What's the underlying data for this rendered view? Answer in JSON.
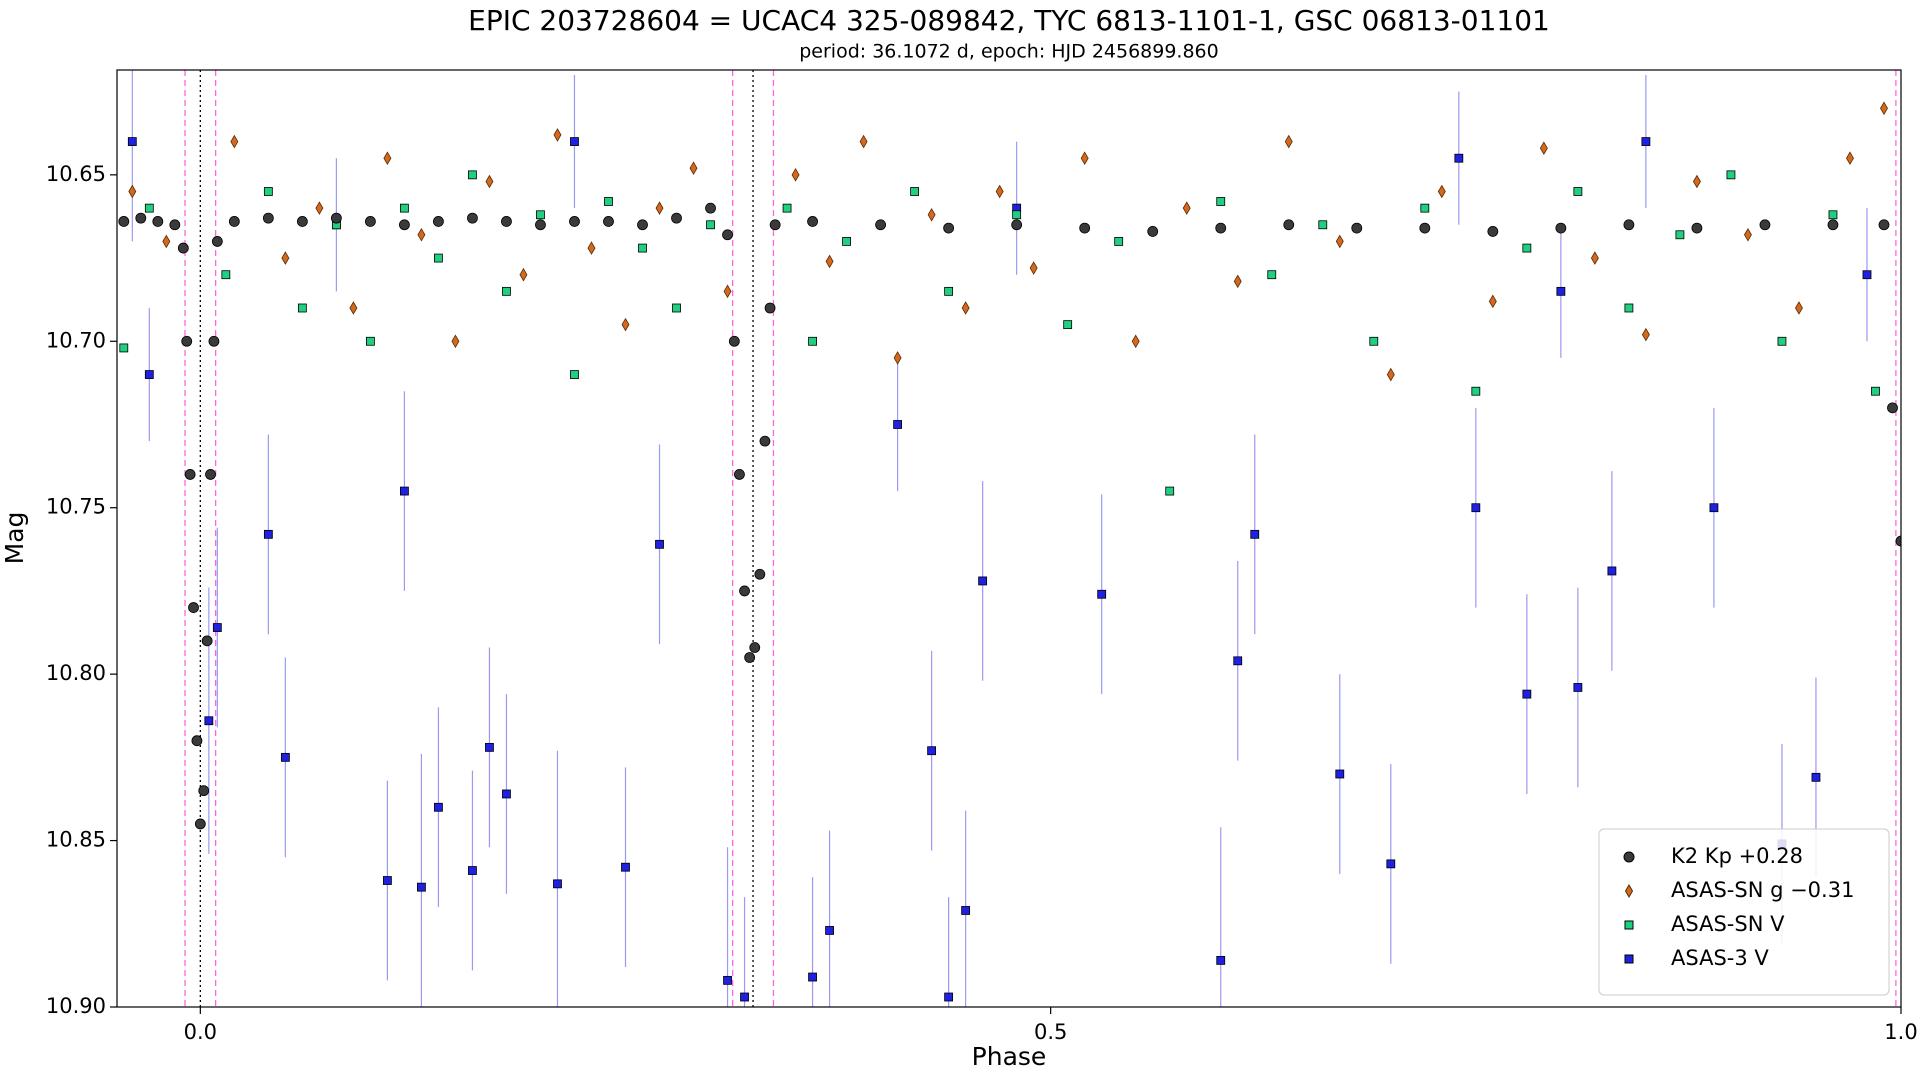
{
  "chart_data": {
    "type": "scatter",
    "title": "EPIC 203728604 = UCAC4 325-089842, TYC 6813-1101-1, GSC 06813-01101",
    "subtitle": "period: 36.1072 d, epoch: HJD 2456899.860",
    "x_label": "Phase",
    "y_label": "Mag",
    "xlim": [
      -0.049,
      1.0
    ],
    "ylim": [
      10.6185,
      10.9
    ],
    "invert_y": true,
    "xticks": [
      {
        "value": 0,
        "label": "0.0"
      },
      0.5,
      {
        "value": 1,
        "label": "1.0"
      }
    ],
    "yticks": [
      10.65,
      {
        "value": 10.7,
        "label": "10.70"
      },
      10.75,
      {
        "value": 10.8,
        "label": "10.80"
      },
      10.85,
      {
        "value": 10.9,
        "label": "10.90"
      }
    ],
    "legend": "lower right",
    "vlines": [
      {
        "x": -0.009,
        "color": "#ff66dd",
        "style": "dashed"
      },
      {
        "x": 0.009,
        "color": "#ff66dd",
        "style": "dashed"
      },
      {
        "x": 0.313,
        "color": "#ff66dd",
        "style": "dashed"
      },
      {
        "x": 0.337,
        "color": "#ff66dd",
        "style": "dashed"
      },
      {
        "x": 0.997,
        "color": "#ff66dd",
        "style": "dashed"
      },
      {
        "x": 0,
        "color": "#000000",
        "style": "dotted"
      },
      {
        "x": 0.325,
        "color": "#000000",
        "style": "dotted"
      }
    ],
    "series": [
      {
        "name": "ASAS-3 V",
        "color": "#2020e0",
        "marker": "square",
        "x": [
          -0.04,
          -0.03,
          0.005,
          0.01,
          0.04,
          0.05,
          0.08,
          0.11,
          0.12,
          0.13,
          0.14,
          0.16,
          0.17,
          0.18,
          0.21,
          0.22,
          0.25,
          0.27,
          0.31,
          0.32,
          0.36,
          0.37,
          0.41,
          0.43,
          0.44,
          0.45,
          0.46,
          0.48,
          0.53,
          0.6,
          0.61,
          0.62,
          0.67,
          0.7,
          0.74,
          0.75,
          0.78,
          0.8,
          0.81,
          0.83,
          0.85,
          0.89,
          0.93,
          0.95,
          0.98
        ],
        "values": [
          10.64,
          10.71,
          10.814,
          10.786,
          10.758,
          10.825,
          10.665,
          10.862,
          10.745,
          10.864,
          10.84,
          10.859,
          10.822,
          10.836,
          10.863,
          10.64,
          10.858,
          10.761,
          10.892,
          10.897,
          10.891,
          10.877,
          10.725,
          10.823,
          10.897,
          10.871,
          10.772,
          10.66,
          10.776,
          10.886,
          10.796,
          10.758,
          10.83,
          10.857,
          10.645,
          10.75,
          10.806,
          10.685,
          10.804,
          10.769,
          10.64,
          10.75,
          10.851,
          10.831,
          10.68
        ],
        "errors": [
          0.03,
          0.02,
          0.04,
          0.03,
          0.03,
          0.03,
          0.02,
          0.03,
          0.03,
          0.04,
          0.03,
          0.03,
          0.03,
          0.03,
          0.04,
          0.02,
          0.03,
          0.03,
          0.04,
          0.03,
          0.03,
          0.03,
          0.02,
          0.03,
          0.03,
          0.03,
          0.03,
          0.02,
          0.03,
          0.04,
          0.03,
          0.03,
          0.03,
          0.03,
          0.02,
          0.03,
          0.03,
          0.02,
          0.03,
          0.03,
          0.02,
          0.03,
          0.03,
          0.03,
          0.02
        ]
      },
      {
        "name": "ASAS-SN g −0.31",
        "color": "#d2691e",
        "marker": "diamond",
        "x": [
          -0.04,
          -0.02,
          0.02,
          0.05,
          0.07,
          0.09,
          0.11,
          0.13,
          0.15,
          0.17,
          0.19,
          0.21,
          0.23,
          0.25,
          0.27,
          0.29,
          0.31,
          0.35,
          0.37,
          0.39,
          0.41,
          0.43,
          0.45,
          0.47,
          0.49,
          0.52,
          0.55,
          0.58,
          0.61,
          0.64,
          0.67,
          0.7,
          0.73,
          0.76,
          0.79,
          0.82,
          0.85,
          0.88,
          0.91,
          0.94,
          0.97,
          0.99
        ],
        "values": [
          10.655,
          10.67,
          10.64,
          10.675,
          10.66,
          10.69,
          10.645,
          10.668,
          10.7,
          10.652,
          10.68,
          10.638,
          10.672,
          10.695,
          10.66,
          10.648,
          10.685,
          10.65,
          10.676,
          10.64,
          10.705,
          10.662,
          10.69,
          10.655,
          10.678,
          10.645,
          10.7,
          10.66,
          10.682,
          10.64,
          10.67,
          10.71,
          10.655,
          10.688,
          10.642,
          10.675,
          10.698,
          10.652,
          10.668,
          10.69,
          10.645,
          10.63
        ]
      },
      {
        "name": "ASAS-SN V",
        "color": "#20d080",
        "marker": "square",
        "x": [
          -0.045,
          -0.03,
          0.015,
          0.04,
          0.06,
          0.08,
          0.1,
          0.12,
          0.14,
          0.16,
          0.18,
          0.2,
          0.22,
          0.24,
          0.26,
          0.28,
          0.3,
          0.345,
          0.36,
          0.38,
          0.42,
          0.44,
          0.48,
          0.51,
          0.54,
          0.57,
          0.6,
          0.63,
          0.66,
          0.69,
          0.72,
          0.75,
          0.78,
          0.81,
          0.84,
          0.87,
          0.9,
          0.93,
          0.96,
          0.985
        ],
        "values": [
          10.702,
          10.66,
          10.68,
          10.655,
          10.69,
          10.665,
          10.7,
          10.66,
          10.675,
          10.65,
          10.685,
          10.662,
          10.71,
          10.658,
          10.672,
          10.69,
          10.665,
          10.66,
          10.7,
          10.67,
          10.655,
          10.685,
          10.662,
          10.695,
          10.67,
          10.745,
          10.658,
          10.68,
          10.665,
          10.7,
          10.66,
          10.715,
          10.672,
          10.655,
          10.69,
          10.668,
          10.65,
          10.7,
          10.662,
          10.715
        ]
      },
      {
        "name": "K2 Kp +0.28",
        "color": "#3a3a3a",
        "marker": "circle",
        "x": [
          -0.045,
          -0.035,
          -0.025,
          -0.015,
          -0.01,
          -0.008,
          -0.006,
          -0.004,
          -0.002,
          0.0,
          0.002,
          0.004,
          0.006,
          0.008,
          0.01,
          0.02,
          0.04,
          0.06,
          0.08,
          0.1,
          0.12,
          0.14,
          0.16,
          0.18,
          0.2,
          0.22,
          0.24,
          0.26,
          0.28,
          0.3,
          0.31,
          0.314,
          0.317,
          0.32,
          0.323,
          0.326,
          0.329,
          0.332,
          0.335,
          0.338,
          0.36,
          0.4,
          0.44,
          0.48,
          0.52,
          0.56,
          0.6,
          0.64,
          0.68,
          0.72,
          0.76,
          0.8,
          0.84,
          0.88,
          0.92,
          0.96,
          0.99,
          0.995,
          1.0
        ],
        "values": [
          10.664,
          10.663,
          10.664,
          10.665,
          10.672,
          10.7,
          10.74,
          10.78,
          10.82,
          10.845,
          10.835,
          10.79,
          10.74,
          10.7,
          10.67,
          10.664,
          10.663,
          10.664,
          10.663,
          10.664,
          10.665,
          10.664,
          10.663,
          10.664,
          10.665,
          10.664,
          10.664,
          10.665,
          10.663,
          10.66,
          10.668,
          10.7,
          10.74,
          10.775,
          10.795,
          10.792,
          10.77,
          10.73,
          10.69,
          10.665,
          10.664,
          10.665,
          10.666,
          10.665,
          10.666,
          10.667,
          10.666,
          10.665,
          10.666,
          10.666,
          10.667,
          10.666,
          10.665,
          10.666,
          10.665,
          10.665,
          10.665,
          10.72,
          10.76
        ]
      }
    ],
    "legend_order": [
      3,
      1,
      2,
      0
    ]
  }
}
